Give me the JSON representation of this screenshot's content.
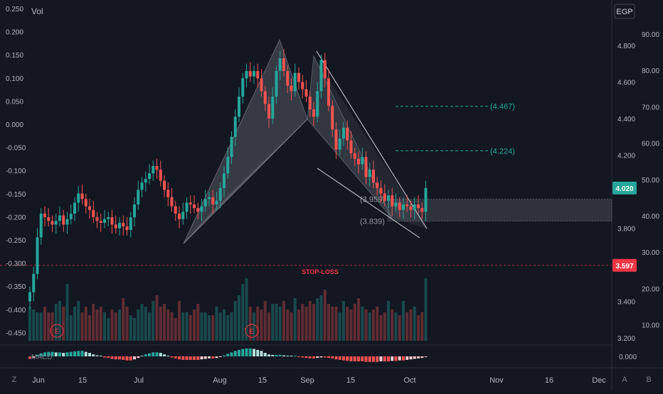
{
  "top": {
    "vol_label": "Vol",
    "currency": "EGP"
  },
  "chart_data": {
    "type": "candlestick",
    "price_axis_ticks": [
      "4.800",
      "4.600",
      "4.400",
      "4.200",
      "3.800",
      "3.400",
      "3.200"
    ],
    "volume_axis_ticks": [
      "90.00",
      "80.00",
      "70.00",
      "60.00",
      "50.00",
      "40.00",
      "30.00",
      "20.00",
      "10.00"
    ],
    "macd_axis_ticks": [
      "0.250",
      "0.200",
      "0.150",
      "0.100",
      "0.050",
      "0.000",
      "-0.050",
      "-0.100",
      "-0.150",
      "-0.200",
      "-0.250",
      "-0.300",
      "-0.350",
      "-0.400",
      "-0.450"
    ],
    "macd_zero_label": "0.000",
    "x_ticks": [
      "Jun",
      "15",
      "Jul",
      "Aug",
      "15",
      "Sep",
      "15",
      "Oct",
      "Nov",
      "16",
      "Dec"
    ],
    "price_range": [
      3.15,
      4.95
    ],
    "last_price": {
      "label": "4.020",
      "value": 4.02,
      "color": "#26a69a"
    },
    "stop_loss": {
      "price_label": "3.597",
      "value": 3.597,
      "text": "STOP-LOSS",
      "color": "#f23645"
    },
    "targets": [
      {
        "label": "(4.467)",
        "value": 4.467
      },
      {
        "label": "(4.224)",
        "value": 4.224
      }
    ],
    "zone": {
      "top": 3.959,
      "bottom": 3.839,
      "top_label": "(3.959)",
      "bottom_label": "(3.839)"
    },
    "earnings_markers": [
      "E",
      "E"
    ],
    "macd_label": "MACD",
    "colors": {
      "up": "#26a69a",
      "down": "#ef5350",
      "target": "#22ab94",
      "pattern": "#9598a1"
    },
    "closes": [
      3.45,
      3.55,
      3.75,
      3.88,
      3.86,
      3.84,
      3.82,
      3.84,
      3.87,
      3.82,
      3.85,
      3.88,
      3.94,
      3.99,
      3.96,
      3.92,
      3.9,
      3.86,
      3.84,
      3.83,
      3.85,
      3.86,
      3.82,
      3.8,
      3.83,
      3.81,
      3.79,
      3.86,
      3.93,
      4.01,
      4.05,
      4.07,
      4.1,
      4.14,
      4.12,
      4.06,
      4.01,
      3.97,
      3.92,
      3.88,
      3.85,
      3.89,
      3.94,
      3.93,
      3.91,
      3.89,
      3.92,
      3.96,
      3.97,
      3.93,
      3.95,
      4.02,
      4.1,
      4.19,
      4.3,
      4.41,
      4.52,
      4.62,
      4.66,
      4.63,
      4.66,
      4.62,
      4.55,
      4.48,
      4.4,
      4.52,
      4.66,
      4.73,
      4.66,
      4.58,
      4.55,
      4.65,
      4.6,
      4.56,
      4.52,
      4.45,
      4.41,
      4.55,
      4.72,
      4.62,
      4.47,
      4.34,
      4.23,
      4.29,
      4.35,
      4.28,
      4.21,
      4.18,
      4.15,
      4.19,
      4.08,
      4.12,
      4.05,
      4.02,
      3.99,
      3.95,
      3.98,
      3.92,
      3.94,
      3.9,
      3.93,
      3.92,
      3.9,
      3.93,
      3.91,
      3.89,
      4.02
    ],
    "volumes": [
      12,
      11,
      10,
      10,
      12,
      10,
      10,
      13,
      14,
      12,
      20,
      9,
      12,
      14,
      10,
      12,
      9,
      13,
      11,
      12,
      10,
      8,
      11,
      10,
      11,
      15,
      12,
      9,
      8,
      11,
      13,
      12,
      10,
      14,
      16,
      12,
      13,
      11,
      10,
      8,
      14,
      10,
      10,
      9,
      11,
      13,
      10,
      10,
      9,
      9,
      12,
      10,
      11,
      9,
      10,
      14,
      16,
      20,
      22,
      12,
      10,
      12,
      11,
      14,
      10,
      13,
      13,
      12,
      14,
      11,
      10,
      15,
      11,
      13,
      12,
      14,
      13,
      15,
      16,
      18,
      13,
      12,
      12,
      10,
      14,
      12,
      11,
      13,
      15,
      12,
      11,
      10,
      11,
      12,
      9,
      10,
      14,
      11,
      10,
      9,
      14,
      10,
      11,
      12,
      9,
      10,
      22
    ],
    "macd_hist": [
      -0.005,
      -0.003,
      0.003,
      0.006,
      0.008,
      0.009,
      0.009,
      0.008,
      0.008,
      0.007,
      0.008,
      0.009,
      0.01,
      0.011,
      0.011,
      0.009,
      0.007,
      0.004,
      0.002,
      0.0,
      -0.002,
      -0.003,
      -0.005,
      -0.006,
      -0.006,
      -0.007,
      -0.008,
      -0.008,
      -0.006,
      -0.003,
      0.001,
      0.004,
      0.006,
      0.008,
      0.008,
      0.007,
      0.004,
      0.001,
      -0.002,
      -0.004,
      -0.006,
      -0.007,
      -0.007,
      -0.007,
      -0.007,
      -0.007,
      -0.006,
      -0.005,
      -0.004,
      -0.004,
      -0.003,
      -0.001,
      0.002,
      0.005,
      0.008,
      0.011,
      0.013,
      0.015,
      0.016,
      0.016,
      0.015,
      0.013,
      0.011,
      0.007,
      0.004,
      0.003,
      0.003,
      0.003,
      0.002,
      0.001,
      0.0,
      0.0,
      -0.001,
      -0.002,
      -0.003,
      -0.004,
      -0.004,
      -0.003,
      -0.002,
      -0.002,
      -0.003,
      -0.004,
      -0.006,
      -0.007,
      -0.008,
      -0.009,
      -0.01,
      -0.01,
      -0.01,
      -0.01,
      -0.011,
      -0.011,
      -0.011,
      -0.011,
      -0.01,
      -0.01,
      -0.01,
      -0.009,
      -0.009,
      -0.008,
      -0.008,
      -0.007,
      -0.006,
      -0.005,
      -0.004,
      -0.003,
      -0.001
    ],
    "macd_range": [
      -0.02,
      0.02
    ]
  },
  "bottom_left": "Z",
  "bottom_right": [
    "A",
    "B"
  ]
}
